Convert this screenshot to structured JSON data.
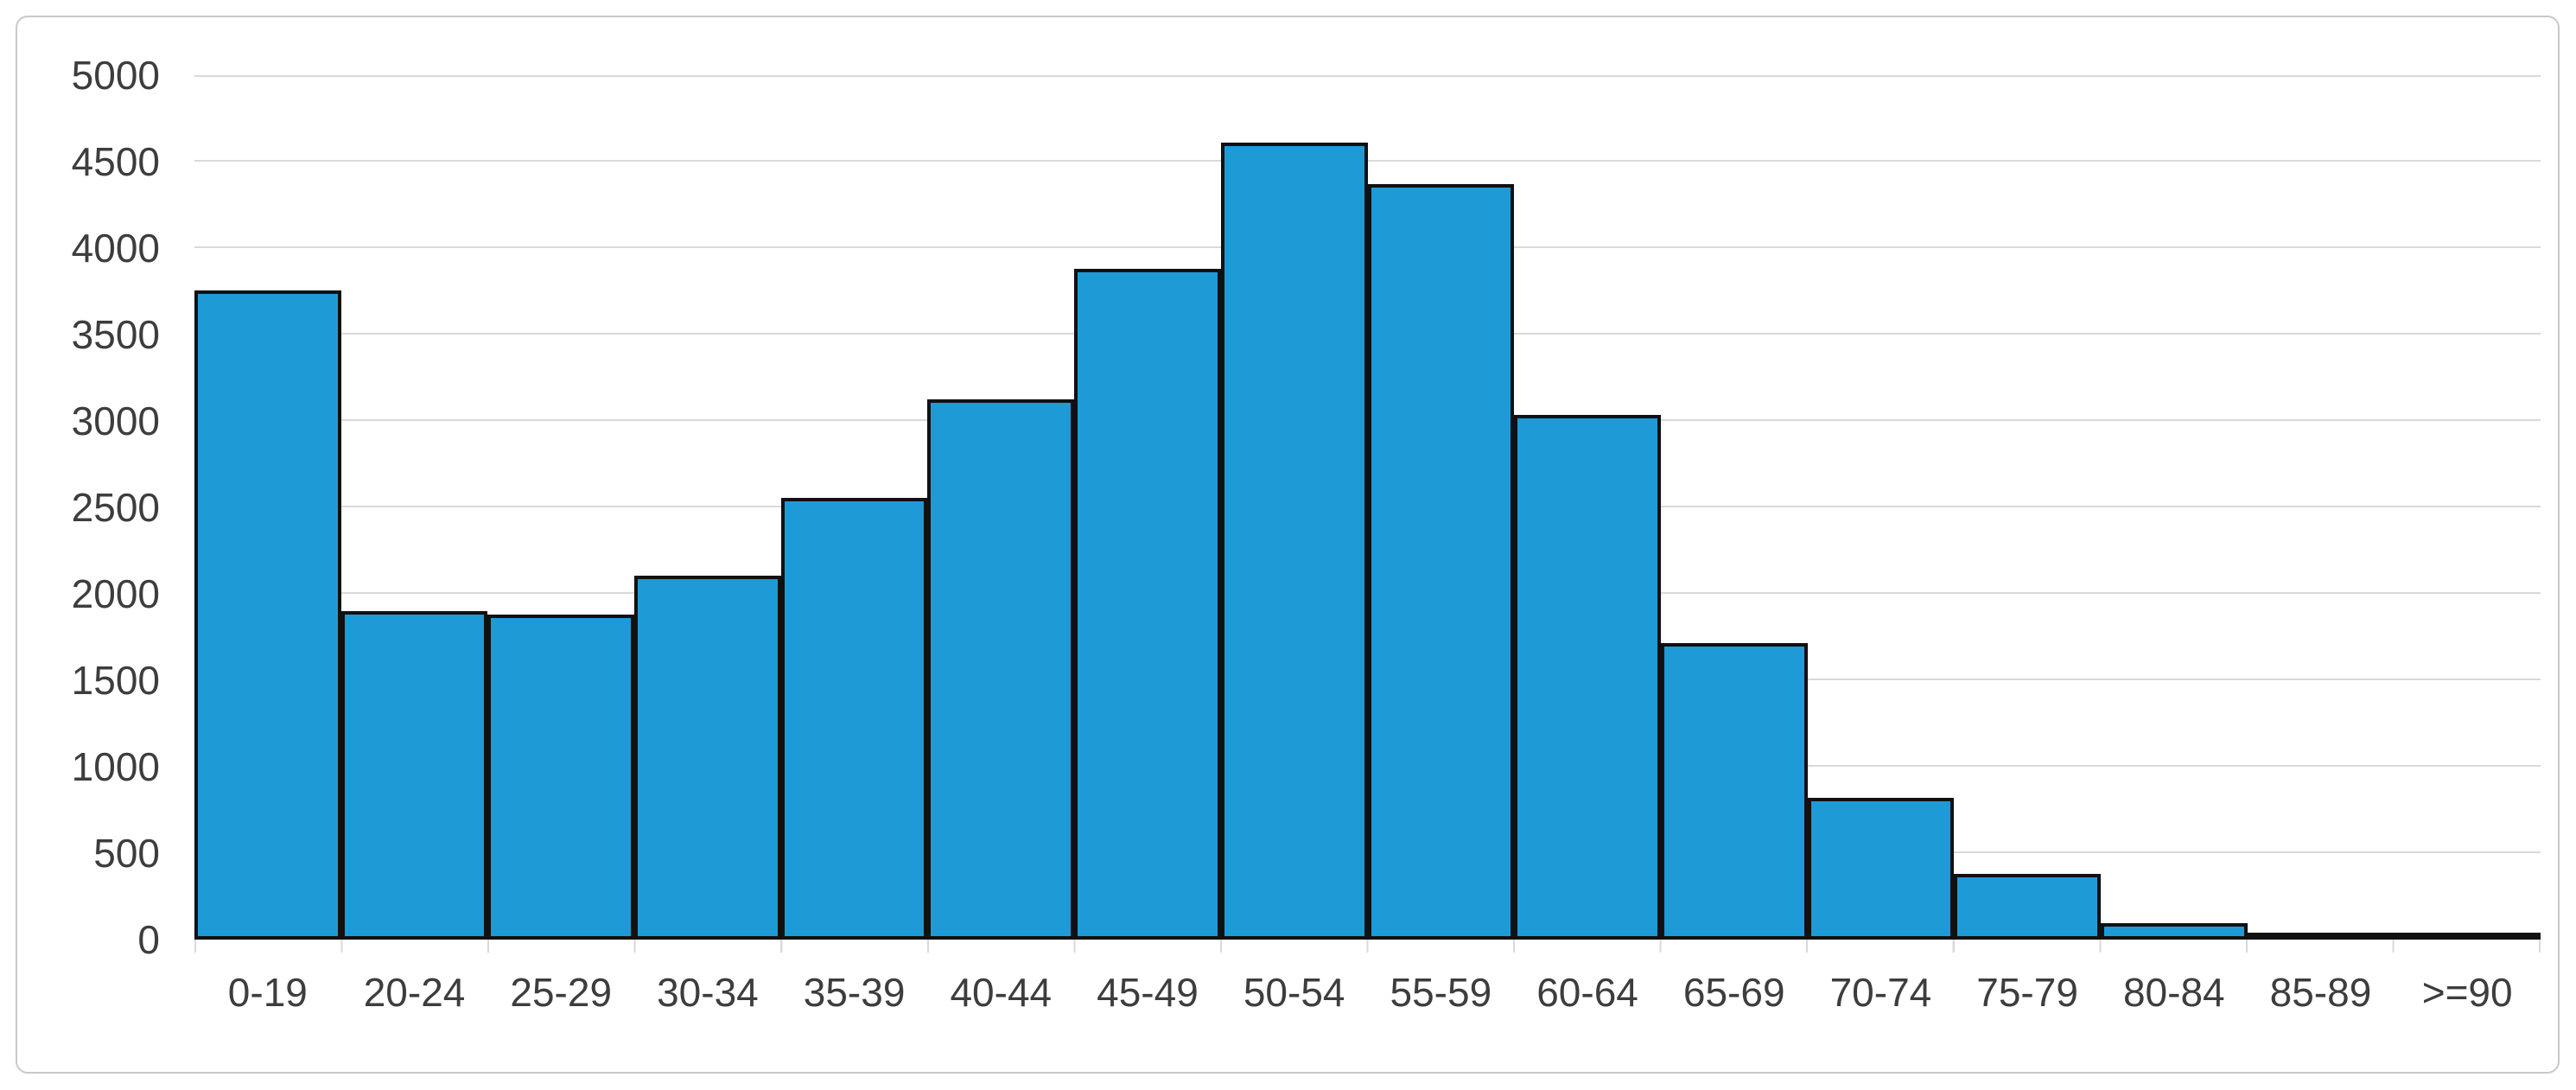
{
  "chart_data": {
    "type": "bar",
    "title": "",
    "categories": [
      "0-19",
      "20-24",
      "25-29",
      "30-34",
      "35-39",
      "40-44",
      "45-49",
      "50-54",
      "55-59",
      "60-64",
      "65-69",
      "70-74",
      "75-79",
      "80-84",
      "85-89",
      ">=90"
    ],
    "values": [
      3765,
      1905,
      1885,
      2110,
      2560,
      3130,
      3890,
      4620,
      4380,
      3040,
      1720,
      820,
      380,
      95,
      30,
      10
    ],
    "xlabel": "",
    "ylabel": "",
    "ylim": [
      0,
      5000
    ],
    "ytick_step": 500,
    "y_tick_labels": [
      "0",
      "500",
      "1000",
      "1500",
      "2000",
      "2500",
      "3000",
      "3500",
      "4000",
      "4500",
      "5000"
    ],
    "grid": true,
    "legend_position": "none",
    "bar_gap": 0
  },
  "colors": {
    "bar_fill": "#1e9bd7",
    "bar_border": "#111111",
    "gridline": "#d9d9d9",
    "axis_label_text": "#3d3d3d",
    "frame_border": "#c9c9c9",
    "background": "#ffffff"
  }
}
